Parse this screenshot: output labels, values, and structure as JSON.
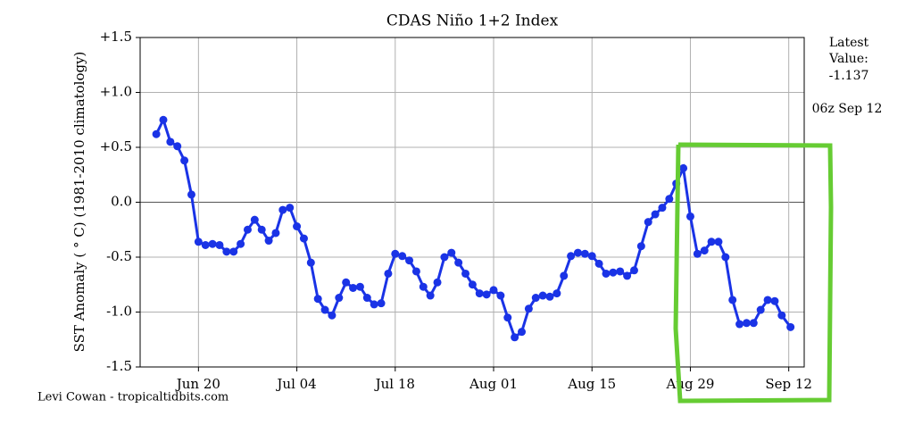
{
  "chart_data": {
    "type": "line",
    "title": "CDAS Niño 1+2 Index",
    "y_label": "SST Anomaly ( ° C) (1981-2010 climatology)",
    "latest_label_lines": [
      "Latest",
      "Value:"
    ],
    "latest_value": -1.137,
    "latest_time": "06z Sep 12",
    "credit": "Levi Cowan - tropicaltidbits.com",
    "grid": true,
    "xlim": [
      162.7,
      257.2
    ],
    "xticks": [
      {
        "value": 171,
        "label": "Jun 20"
      },
      {
        "value": 185,
        "label": "Jul 04"
      },
      {
        "value": 199,
        "label": "Jul 18"
      },
      {
        "value": 213,
        "label": "Aug 01"
      },
      {
        "value": 227,
        "label": "Aug 15"
      },
      {
        "value": 241,
        "label": "Aug 29"
      },
      {
        "value": 255,
        "label": "Sep 12"
      }
    ],
    "ylim": [
      -1.5,
      1.5
    ],
    "yticks": [
      {
        "value": 1.5,
        "label": "+1.5"
      },
      {
        "value": 1.0,
        "label": "+1.0"
      },
      {
        "value": 0.5,
        "label": "+0.5"
      },
      {
        "value": 0,
        "label": "0.0"
      },
      {
        "value": -0.5,
        "label": "-0.5"
      },
      {
        "value": -1.0,
        "label": "-1.0"
      },
      {
        "value": -1.5,
        "label": "-1.5"
      }
    ],
    "x": [
      165,
      166,
      167,
      168,
      169,
      170,
      171,
      172,
      173,
      174,
      175,
      176,
      177,
      178,
      179,
      180,
      181,
      182,
      183,
      184,
      185,
      186,
      187,
      188,
      189,
      190,
      191,
      192,
      193,
      194,
      195,
      196,
      197,
      198,
      199,
      200,
      201,
      202,
      203,
      204,
      205,
      206,
      207,
      208,
      209,
      210,
      211,
      212,
      213,
      214,
      215,
      216,
      217,
      218,
      219,
      220,
      221,
      222,
      223,
      224,
      225,
      226,
      227,
      228,
      229,
      230,
      231,
      232,
      233,
      234,
      235,
      236,
      237,
      238,
      239,
      240,
      241,
      242,
      243,
      244,
      245,
      246,
      247,
      248,
      249,
      250,
      251,
      252,
      253,
      254,
      255.25
    ],
    "series": [
      {
        "color": "#1a33e6",
        "values": [
          0.62,
          0.75,
          0.55,
          0.51,
          0.38,
          0.07,
          -0.36,
          -0.39,
          -0.38,
          -0.39,
          -0.45,
          -0.45,
          -0.38,
          -0.25,
          -0.16,
          -0.25,
          -0.35,
          -0.28,
          -0.07,
          -0.05,
          -0.22,
          -0.33,
          -0.55,
          -0.88,
          -0.98,
          -1.03,
          -0.87,
          -0.73,
          -0.78,
          -0.77,
          -0.87,
          -0.93,
          -0.92,
          -0.65,
          -0.47,
          -0.49,
          -0.53,
          -0.63,
          -0.77,
          -0.85,
          -0.73,
          -0.5,
          -0.46,
          -0.55,
          -0.65,
          -0.75,
          -0.83,
          -0.84,
          -0.8,
          -0.85,
          -1.05,
          -1.23,
          -1.18,
          -0.97,
          -0.87,
          -0.85,
          -0.86,
          -0.83,
          -0.67,
          -0.49,
          -0.46,
          -0.47,
          -0.49,
          -0.56,
          -0.65,
          -0.64,
          -0.63,
          -0.67,
          -0.62,
          -0.4,
          -0.18,
          -0.11,
          -0.05,
          0.03,
          0.17,
          0.31,
          -0.13,
          -0.47,
          -0.44,
          -0.36,
          -0.36,
          -0.5,
          -0.89,
          -1.11,
          -1.1,
          -1.1,
          -0.98,
          -0.89,
          -0.9,
          -1.03,
          -1.137
        ]
      }
    ]
  }
}
